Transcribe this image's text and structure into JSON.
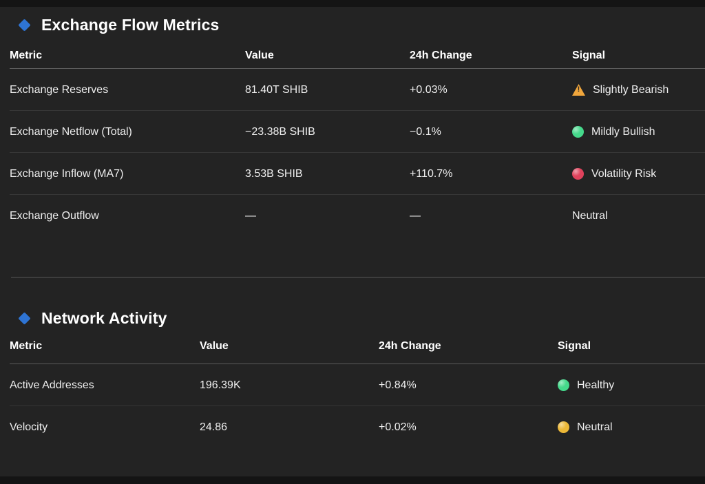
{
  "theme": {
    "accent": "#2e74d4",
    "background": "#232323",
    "warning_color": "#f0a63c",
    "bullish_color": "#45d98b",
    "risk_color": "#e0425c",
    "neutral_color": "#ecb837",
    "healthy_color": "#45d98b"
  },
  "sections": [
    {
      "title": "Exchange Flow Metrics",
      "columns": {
        "metric": "Metric",
        "value": "Value",
        "change": "24h Change",
        "signal": "Signal"
      },
      "rows": [
        {
          "metric": "Exchange Reserves",
          "value": "81.40T SHIB",
          "change": "+0.03%",
          "signal": "Slightly Bearish",
          "signal_icon": "warning-triangle",
          "signal_color": "#f0a63c"
        },
        {
          "metric": "Exchange Netflow (Total)",
          "value": "−23.38B SHIB",
          "change": "−0.1%",
          "signal": "Mildly Bullish",
          "signal_icon": "circle",
          "signal_color": "#45d98b"
        },
        {
          "metric": "Exchange Inflow (MA7)",
          "value": "3.53B SHIB",
          "change": "+110.7%",
          "signal": "Volatility Risk",
          "signal_icon": "circle",
          "signal_color": "#e0425c"
        },
        {
          "metric": "Exchange Outflow",
          "value": "—",
          "change": "—",
          "signal": "Neutral",
          "signal_icon": "none",
          "signal_color": ""
        }
      ]
    },
    {
      "title": "Network Activity",
      "columns": {
        "metric": "Metric",
        "value": "Value",
        "change": "24h Change",
        "signal": "Signal"
      },
      "rows": [
        {
          "metric": "Active Addresses",
          "value": "196.39K",
          "change": "+0.84%",
          "signal": "Healthy",
          "signal_icon": "circle",
          "signal_color": "#45d98b"
        },
        {
          "metric": "Velocity",
          "value": "24.86",
          "change": "+0.02%",
          "signal": "Neutral",
          "signal_icon": "circle",
          "signal_color": "#ecb837"
        }
      ]
    }
  ]
}
